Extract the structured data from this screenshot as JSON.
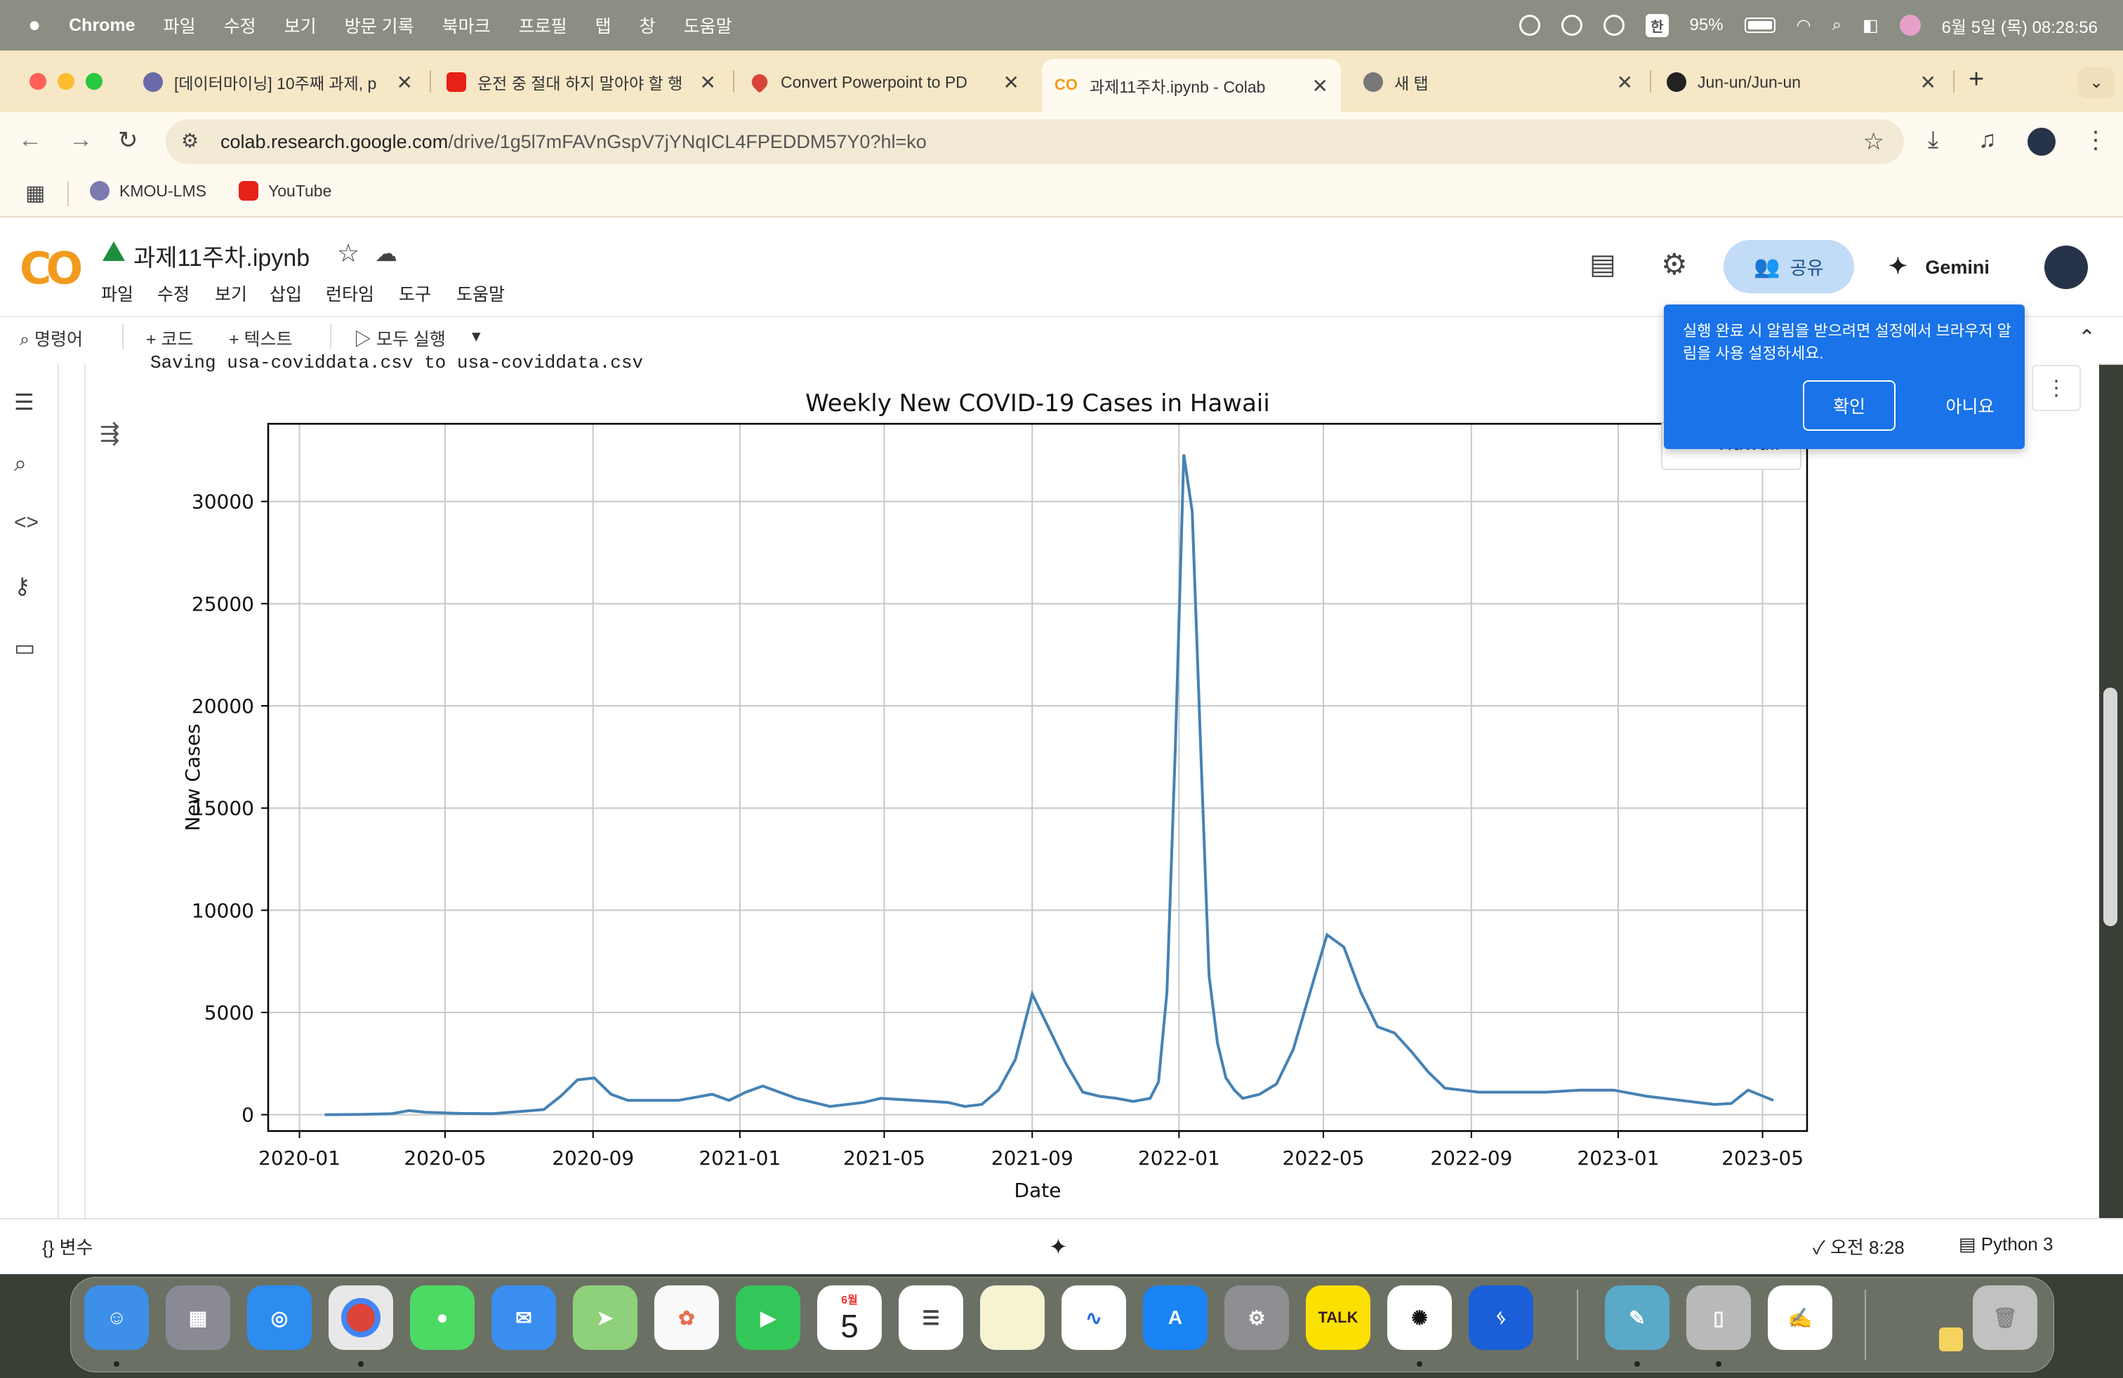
{
  "menubar": {
    "app": "Chrome",
    "items": [
      "파일",
      "수정",
      "보기",
      "방문 기록",
      "북마크",
      "프로필",
      "탭",
      "창",
      "도움말"
    ],
    "input_method": "한",
    "battery": "95%",
    "datetime": "6월 5일 (목) 08:28:56"
  },
  "tabs": [
    {
      "title": "[데이터마이닝] 10주째 과제, p",
      "favicon_color": "#6a6aa8"
    },
    {
      "title": "운전 중 절대 하지 말아야 할 행",
      "favicon_color": "#e62117"
    },
    {
      "title": "Convert Powerpoint to PD",
      "favicon_color": "#d9443a"
    },
    {
      "title": "과제11주차.ipynb - Colab",
      "favicon_color": "#f29a1e"
    },
    {
      "title": "새 탭",
      "favicon_color": "#777777"
    },
    {
      "title": "Jun-un/Jun-un",
      "favicon_color": "#222222"
    }
  ],
  "tab_close": "✕",
  "new_tab": "+",
  "address": {
    "host": "colab.research.google.com",
    "path": "/drive/1g5l7mFAVnGspV7jYNqICL4FPEDDM57Y0?hl=ko"
  },
  "bookmarks": [
    {
      "label": "KMOU-LMS"
    },
    {
      "label": "YouTube"
    }
  ],
  "colab": {
    "notebook_title": "과제11주차.ipynb",
    "menu": [
      "파일",
      "수정",
      "보기",
      "삽입",
      "런타임",
      "도구",
      "도움말"
    ],
    "share_label": "공유",
    "gemini_label": "Gemini",
    "toolbar": {
      "command": "명령어",
      "code": "+ 코드",
      "text": "+ 텍스트",
      "run_all": "▷ 모두 실행"
    },
    "output_text": "Saving usa-coviddata.csv to usa-coviddata.csv",
    "legend_partial": "Hawaii"
  },
  "popup": {
    "message": "실행 완료 시 알림을 받으려면 설정에서 브라우저 알림을 사용 설정하세요.",
    "confirm": "확인",
    "decline": "아니요"
  },
  "statusbar": {
    "variables": "변수",
    "time": "오전 8:28",
    "runtime": "Python 3"
  },
  "dock": {
    "calendar_month": "6월",
    "calendar_day": "5",
    "kakao": "TALK"
  },
  "colors": {
    "line": "#4682b4",
    "accent": "#1a73e8"
  },
  "chart_data": {
    "type": "line",
    "title": "Weekly New COVID-19 Cases in Hawaii",
    "xlabel": "Date",
    "ylabel": "New Cases",
    "xticks": [
      "2020-01",
      "2020-05",
      "2020-09",
      "2021-01",
      "2021-05",
      "2021-09",
      "2022-01",
      "2022-05",
      "2022-09",
      "2023-01",
      "2023-05"
    ],
    "yticks": [
      0,
      5000,
      10000,
      15000,
      20000,
      25000,
      30000
    ],
    "ylim": [
      -800,
      33800
    ],
    "grid": true,
    "series": [
      {
        "name": "Hawaii",
        "x": [
          "2020-01-22",
          "2020-02-19",
          "2020-03-18",
          "2020-04-01",
          "2020-04-15",
          "2020-05-13",
          "2020-06-10",
          "2020-07-08",
          "2020-07-22",
          "2020-08-05",
          "2020-08-19",
          "2020-09-02",
          "2020-09-16",
          "2020-09-30",
          "2020-10-14",
          "2020-11-11",
          "2020-12-09",
          "2020-12-23",
          "2021-01-06",
          "2021-01-20",
          "2021-02-17",
          "2021-03-17",
          "2021-04-14",
          "2021-04-28",
          "2021-05-26",
          "2021-06-23",
          "2021-07-07",
          "2021-07-21",
          "2021-08-04",
          "2021-08-18",
          "2021-09-01",
          "2021-09-15",
          "2021-09-29",
          "2021-10-13",
          "2021-10-27",
          "2021-11-10",
          "2021-11-24",
          "2021-12-08",
          "2021-12-15",
          "2021-12-22",
          "2021-12-29",
          "2022-01-05",
          "2022-01-12",
          "2022-01-19",
          "2022-01-26",
          "2022-02-02",
          "2022-02-09",
          "2022-02-16",
          "2022-02-23",
          "2022-03-09",
          "2022-03-23",
          "2022-04-06",
          "2022-04-20",
          "2022-05-04",
          "2022-05-18",
          "2022-06-01",
          "2022-06-15",
          "2022-06-29",
          "2022-07-13",
          "2022-07-27",
          "2022-08-10",
          "2022-08-24",
          "2022-09-07",
          "2022-10-05",
          "2022-11-02",
          "2022-11-30",
          "2022-12-28",
          "2023-01-25",
          "2023-02-22",
          "2023-03-22",
          "2023-04-05",
          "2023-04-19",
          "2023-05-10"
        ],
        "y": [
          0,
          10,
          50,
          200,
          120,
          60,
          50,
          180,
          250,
          900,
          1700,
          1800,
          1000,
          700,
          700,
          700,
          1000,
          700,
          1100,
          1400,
          800,
          400,
          600,
          800,
          700,
          600,
          400,
          500,
          1200,
          2700,
          5900,
          4200,
          2500,
          1100,
          900,
          800,
          650,
          800,
          1600,
          6000,
          18000,
          32300,
          29500,
          18000,
          6800,
          3500,
          1800,
          1200,
          800,
          1000,
          1500,
          3200,
          6000,
          8800,
          8200,
          6000,
          4300,
          4000,
          3100,
          2100,
          1300,
          1200,
          1100,
          1100,
          1100,
          1200,
          1200,
          900,
          700,
          500,
          550,
          1200,
          700
        ]
      }
    ]
  }
}
